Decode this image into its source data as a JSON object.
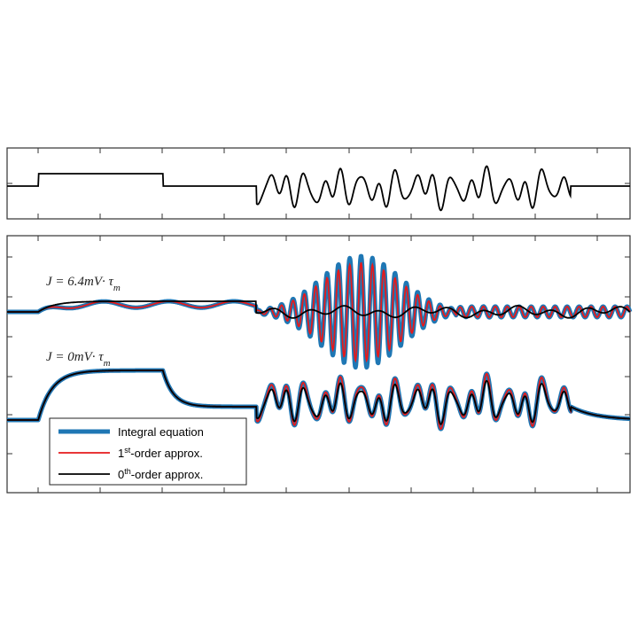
{
  "chart_data": [
    {
      "type": "line",
      "panel": "input-stimulus",
      "grid": false,
      "xlim": [
        0,
        1
      ],
      "series": [
        {
          "color": "#000000",
          "description_values": "step pulse then noisy oscillating input",
          "x": [
            0.0,
            0.05,
            0.051,
            0.25,
            0.251,
            0.4,
            0.41,
            0.45,
            0.9,
            0.905,
            1.0
          ],
          "y": [
            0.0,
            0.0,
            1.0,
            1.0,
            0.0,
            0.0,
            1.0,
            -1.8,
            0.6,
            0.0,
            0.0
          ]
        }
      ]
    },
    {
      "type": "line",
      "panel": "responses",
      "grid": false,
      "xlim": [
        0,
        1
      ],
      "annotations": [
        {
          "text": "J = 6.4mV· τ",
          "sub": "m"
        },
        {
          "text": "J = 0mV· τ",
          "sub": "m"
        }
      ],
      "legend": {
        "placement": "bottom-left",
        "entries": [
          {
            "label": "Integral equation",
            "color": "#1f77b4"
          },
          {
            "label_base": "1",
            "label_sup": "st",
            "label_rest": "-order approx.",
            "color": "#e41a1c"
          },
          {
            "label_base": "0",
            "label_sup": "th",
            "label_rest": "-order approx.",
            "color": "#000000"
          }
        ]
      },
      "series": [
        {
          "name": "Integral equation",
          "color": "#1f77b4"
        },
        {
          "name": "1st-order approx.",
          "color": "#e41a1c"
        },
        {
          "name": "0th-order approx.",
          "color": "#000000"
        }
      ]
    }
  ],
  "colors": {
    "integral": "#1f77b4",
    "first_order": "#e41a1c",
    "zeroth_order": "#000000",
    "axis": "#333333"
  }
}
